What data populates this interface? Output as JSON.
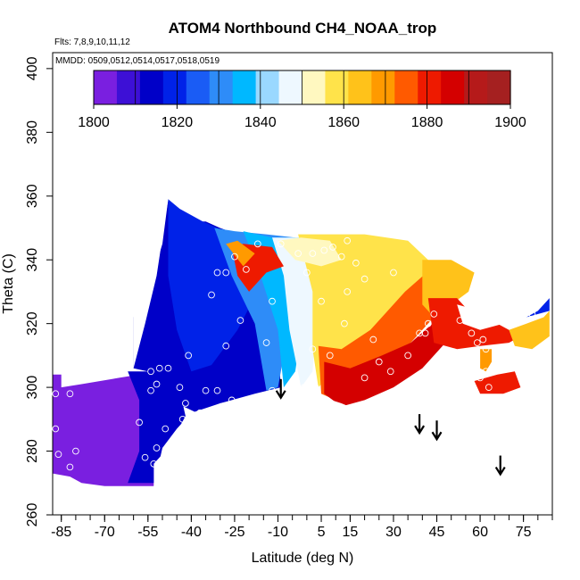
{
  "chart_data": {
    "type": "heatmap",
    "title": "ATOM4 Northbound CH4_NOAA_trop",
    "flights_note": "Flts: 7,8,9,10,11,12",
    "dates_note": "MMDD: 0509,0512,0514,0517,0518,0519",
    "xlabel": "Latitude (deg N)",
    "ylabel": "Theta (C)",
    "xlim": [
      -88,
      85
    ],
    "ylim": [
      260,
      405
    ],
    "x_ticks": [
      -85,
      -70,
      -55,
      -40,
      -25,
      -10,
      5,
      15,
      30,
      45,
      60,
      75
    ],
    "x_tick_labels": [
      "-85",
      "-70",
      "-55",
      "-40",
      "-25",
      "-10",
      "5",
      "15",
      "30",
      "45",
      "60",
      "75"
    ],
    "y_ticks": [
      260,
      280,
      300,
      320,
      340,
      360,
      380,
      400
    ],
    "y_tick_labels": [
      "260",
      "280",
      "300",
      "320",
      "340",
      "360",
      "380",
      "400"
    ],
    "colorbar": {
      "min": 1800,
      "max": 1900,
      "tick_values": [
        1800,
        1820,
        1840,
        1860,
        1880,
        1900
      ],
      "tick_labels": [
        "1800",
        "1820",
        "1840",
        "1860",
        "1880",
        "1900"
      ],
      "colors": [
        "#7a1fe0",
        "#3d10d6",
        "#0000c8",
        "#0022e8",
        "#1a5cf5",
        "#2e8cf8",
        "#00b8ff",
        "#9ad8ff",
        "#eef8ff",
        "#fff8c0",
        "#ffe34a",
        "#ffc21a",
        "#ff9a00",
        "#ff5a00",
        "#ee1a00",
        "#d40000",
        "#b51a1a",
        "#a52020"
      ]
    },
    "tropopause_arrows": [
      {
        "lat": -9,
        "theta": 297
      },
      {
        "lat": 39,
        "theta": 286
      },
      {
        "lat": 45,
        "theta": 284
      },
      {
        "lat": 67,
        "theta": 273
      }
    ],
    "samples": [
      {
        "lat": -87,
        "theta": 298
      },
      {
        "lat": -82,
        "theta": 298
      },
      {
        "lat": -87,
        "theta": 287
      },
      {
        "lat": -86,
        "theta": 279
      },
      {
        "lat": -80,
        "theta": 280
      },
      {
        "lat": -82,
        "theta": 275
      },
      {
        "lat": -58,
        "theta": 289
      },
      {
        "lat": -56,
        "theta": 278
      },
      {
        "lat": -53,
        "theta": 276
      },
      {
        "lat": -52,
        "theta": 281
      },
      {
        "lat": -49,
        "theta": 280
      },
      {
        "lat": -49,
        "theta": 287
      },
      {
        "lat": -54,
        "theta": 299
      },
      {
        "lat": -54,
        "theta": 305
      },
      {
        "lat": -51,
        "theta": 306
      },
      {
        "lat": -48,
        "theta": 306
      },
      {
        "lat": -52,
        "theta": 301
      },
      {
        "lat": -44,
        "theta": 300
      },
      {
        "lat": -42,
        "theta": 295
      },
      {
        "lat": -43,
        "theta": 290
      },
      {
        "lat": -37,
        "theta": 292
      },
      {
        "lat": -41,
        "theta": 310
      },
      {
        "lat": -33,
        "theta": 329
      },
      {
        "lat": -31,
        "theta": 336
      },
      {
        "lat": -28,
        "theta": 336
      },
      {
        "lat": -25,
        "theta": 341
      },
      {
        "lat": -21,
        "theta": 337
      },
      {
        "lat": -23,
        "theta": 321
      },
      {
        "lat": -28,
        "theta": 313
      },
      {
        "lat": -26,
        "theta": 296
      },
      {
        "lat": -20,
        "theta": 296
      },
      {
        "lat": -12,
        "theta": 299
      },
      {
        "lat": -14,
        "theta": 314
      },
      {
        "lat": -12,
        "theta": 327
      },
      {
        "lat": -17,
        "theta": 345
      },
      {
        "lat": -9,
        "theta": 345
      },
      {
        "lat": -3,
        "theta": 342
      },
      {
        "lat": 2,
        "theta": 342
      },
      {
        "lat": 6,
        "theta": 343
      },
      {
        "lat": 9,
        "theta": 344
      },
      {
        "lat": 14,
        "theta": 346
      },
      {
        "lat": 12,
        "theta": 341
      },
      {
        "lat": 17,
        "theta": 339
      },
      {
        "lat": 20,
        "theta": 334
      },
      {
        "lat": 14,
        "theta": 330
      },
      {
        "lat": 5,
        "theta": 327
      },
      {
        "lat": 0,
        "theta": 336
      },
      {
        "lat": 2,
        "theta": 312
      },
      {
        "lat": 8,
        "theta": 310
      },
      {
        "lat": 13,
        "theta": 320
      },
      {
        "lat": 20,
        "theta": 303
      },
      {
        "lat": 23,
        "theta": 315
      },
      {
        "lat": 25,
        "theta": 308
      },
      {
        "lat": 29,
        "theta": 305
      },
      {
        "lat": 30,
        "theta": 336
      },
      {
        "lat": 35,
        "theta": 310
      },
      {
        "lat": 42,
        "theta": 320
      },
      {
        "lat": 41,
        "theta": 317
      },
      {
        "lat": 44,
        "theta": 323
      },
      {
        "lat": 53,
        "theta": 321
      },
      {
        "lat": 57,
        "theta": 317
      },
      {
        "lat": 59,
        "theta": 314
      },
      {
        "lat": 61,
        "theta": 315
      },
      {
        "lat": 62,
        "theta": 312
      },
      {
        "lat": 62,
        "theta": 305
      },
      {
        "lat": 60,
        "theta": 303
      },
      {
        "lat": 63,
        "theta": 300
      },
      {
        "lat": 76,
        "theta": 306
      },
      {
        "lat": 78,
        "theta": 323
      },
      {
        "lat": 39,
        "theta": 317
      },
      {
        "lat": -1,
        "theta": 300
      },
      {
        "lat": 3,
        "theta": 300
      },
      {
        "lat": 20,
        "theta": 294
      },
      {
        "lat": -5,
        "theta": 299
      },
      {
        "lat": -31,
        "theta": 299
      },
      {
        "lat": -35,
        "theta": 299
      }
    ]
  }
}
